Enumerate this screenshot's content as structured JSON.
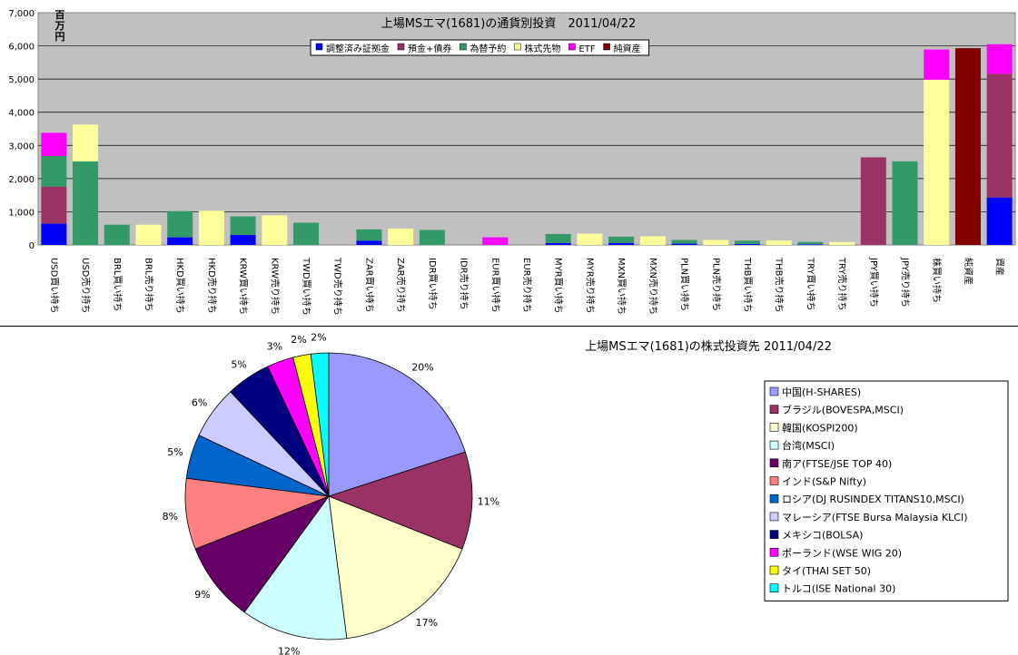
{
  "chart_data": [
    {
      "type": "bar",
      "stacked": true,
      "title": "上場MSエマ(1681)の通貨別投資　2011/04/22",
      "y_unit_label": [
        "百",
        "万",
        "円"
      ],
      "ylim": [
        0,
        7000
      ],
      "y_ticks": [
        "0",
        "1,000",
        "2,000",
        "3,000",
        "4,000",
        "5,000",
        "6,000",
        "7,000"
      ],
      "grid": true,
      "legend_position": "top-center",
      "categories": [
        "USD買い持ち",
        "USD売り持ち",
        "BRL買い持ち",
        "BRL売り持ち",
        "HKD買い持ち",
        "HKD売り持ち",
        "KRW買い持ち",
        "KRW売り持ち",
        "TWD買い持ち",
        "TWD売り持ち",
        "ZAR買い持ち",
        "ZAR売り持ち",
        "IDR買い持ち",
        "IDR売り持ち",
        "EUR買い持ち",
        "EUR売り持ち",
        "MYR買い持ち",
        "MYR売り持ち",
        "MXN買い持ち",
        "MXN売り持ち",
        "PLN買い持ち",
        "PLN売り持ち",
        "THB買い持ち",
        "THB売り持ち",
        "TRY買い持ち",
        "TRY売り持ち",
        "JPY買い持ち",
        "JPY売り持ち",
        "株買い持ち",
        "純資産",
        "資産"
      ],
      "series": [
        {
          "name": "調整済み証拠金",
          "color": "#0000ff",
          "values": [
            640,
            0,
            0,
            0,
            230,
            0,
            300,
            0,
            0,
            0,
            130,
            0,
            0,
            0,
            0,
            0,
            60,
            0,
            60,
            0,
            40,
            0,
            30,
            0,
            20,
            0,
            0,
            0,
            0,
            0,
            1430
          ]
        },
        {
          "name": "預金+債券",
          "color": "#993366",
          "values": [
            1120,
            0,
            0,
            0,
            0,
            0,
            0,
            0,
            0,
            0,
            0,
            0,
            0,
            0,
            0,
            0,
            0,
            0,
            0,
            0,
            0,
            0,
            0,
            0,
            0,
            0,
            2640,
            0,
            0,
            0,
            3730
          ]
        },
        {
          "name": "為替予約",
          "color": "#339966",
          "values": [
            920,
            2520,
            610,
            0,
            790,
            0,
            560,
            0,
            670,
            0,
            340,
            0,
            450,
            0,
            0,
            0,
            270,
            0,
            190,
            0,
            110,
            0,
            100,
            0,
            70,
            0,
            0,
            2520,
            0,
            0,
            0
          ]
        },
        {
          "name": "株式先物",
          "color": "#ffff99",
          "values": [
            0,
            1110,
            0,
            610,
            0,
            1030,
            0,
            890,
            0,
            0,
            0,
            490,
            0,
            0,
            0,
            0,
            0,
            340,
            0,
            260,
            0,
            150,
            0,
            130,
            0,
            90,
            0,
            0,
            4980,
            0,
            0
          ]
        },
        {
          "name": "ETF",
          "color": "#ff00ff",
          "values": [
            700,
            0,
            0,
            0,
            0,
            0,
            0,
            0,
            0,
            0,
            0,
            0,
            0,
            0,
            230,
            0,
            0,
            0,
            0,
            0,
            0,
            0,
            0,
            0,
            0,
            0,
            0,
            0,
            910,
            0,
            890
          ]
        },
        {
          "name": "純資産",
          "color": "#800000",
          "values": [
            0,
            0,
            0,
            0,
            0,
            0,
            0,
            0,
            0,
            0,
            0,
            0,
            0,
            0,
            0,
            0,
            0,
            0,
            0,
            0,
            0,
            0,
            0,
            0,
            0,
            0,
            0,
            0,
            0,
            5930,
            0
          ]
        }
      ]
    },
    {
      "type": "pie",
      "title": "上場MSエマ(1681)の株式投資先 2011/04/22",
      "legend_position": "right",
      "slices": [
        {
          "label": "中国(H-SHARES)",
          "value": 20,
          "pct": "20%",
          "color": "#9999ff"
        },
        {
          "label": "ブラジル(BOVESPA,MSCI)",
          "value": 11,
          "pct": "11%",
          "color": "#993366"
        },
        {
          "label": "韓国(KOSPI200)",
          "value": 17,
          "pct": "17%",
          "color": "#ffffcc"
        },
        {
          "label": "台湾(MSCI)",
          "value": 12,
          "pct": "12%",
          "color": "#ccffff"
        },
        {
          "label": "南ア(FTSE/JSE TOP 40)",
          "value": 9,
          "pct": "9%",
          "color": "#660066"
        },
        {
          "label": "インド(S&P Nifty)",
          "value": 8,
          "pct": "8%",
          "color": "#ff8080"
        },
        {
          "label": "ロシア(DJ RUSINDEX TITANS10,MSCI)",
          "value": 5,
          "pct": "5%",
          "color": "#0066cc"
        },
        {
          "label": "マレーシア(FTSE Bursa Malaysia KLCI)",
          "value": 6,
          "pct": "6%",
          "color": "#ccccff"
        },
        {
          "label": "メキシコ(BOLSA)",
          "value": 5,
          "pct": "5%",
          "color": "#000080"
        },
        {
          "label": "ポーランド(WSE WIG 20)",
          "value": 3,
          "pct": "3%",
          "color": "#ff00ff"
        },
        {
          "label": "タイ(THAI SET 50)",
          "value": 2,
          "pct": "2%",
          "color": "#ffff00"
        },
        {
          "label": "トルコ(ISE National 30)",
          "value": 2,
          "pct": "2%",
          "color": "#00ffff"
        }
      ]
    }
  ]
}
